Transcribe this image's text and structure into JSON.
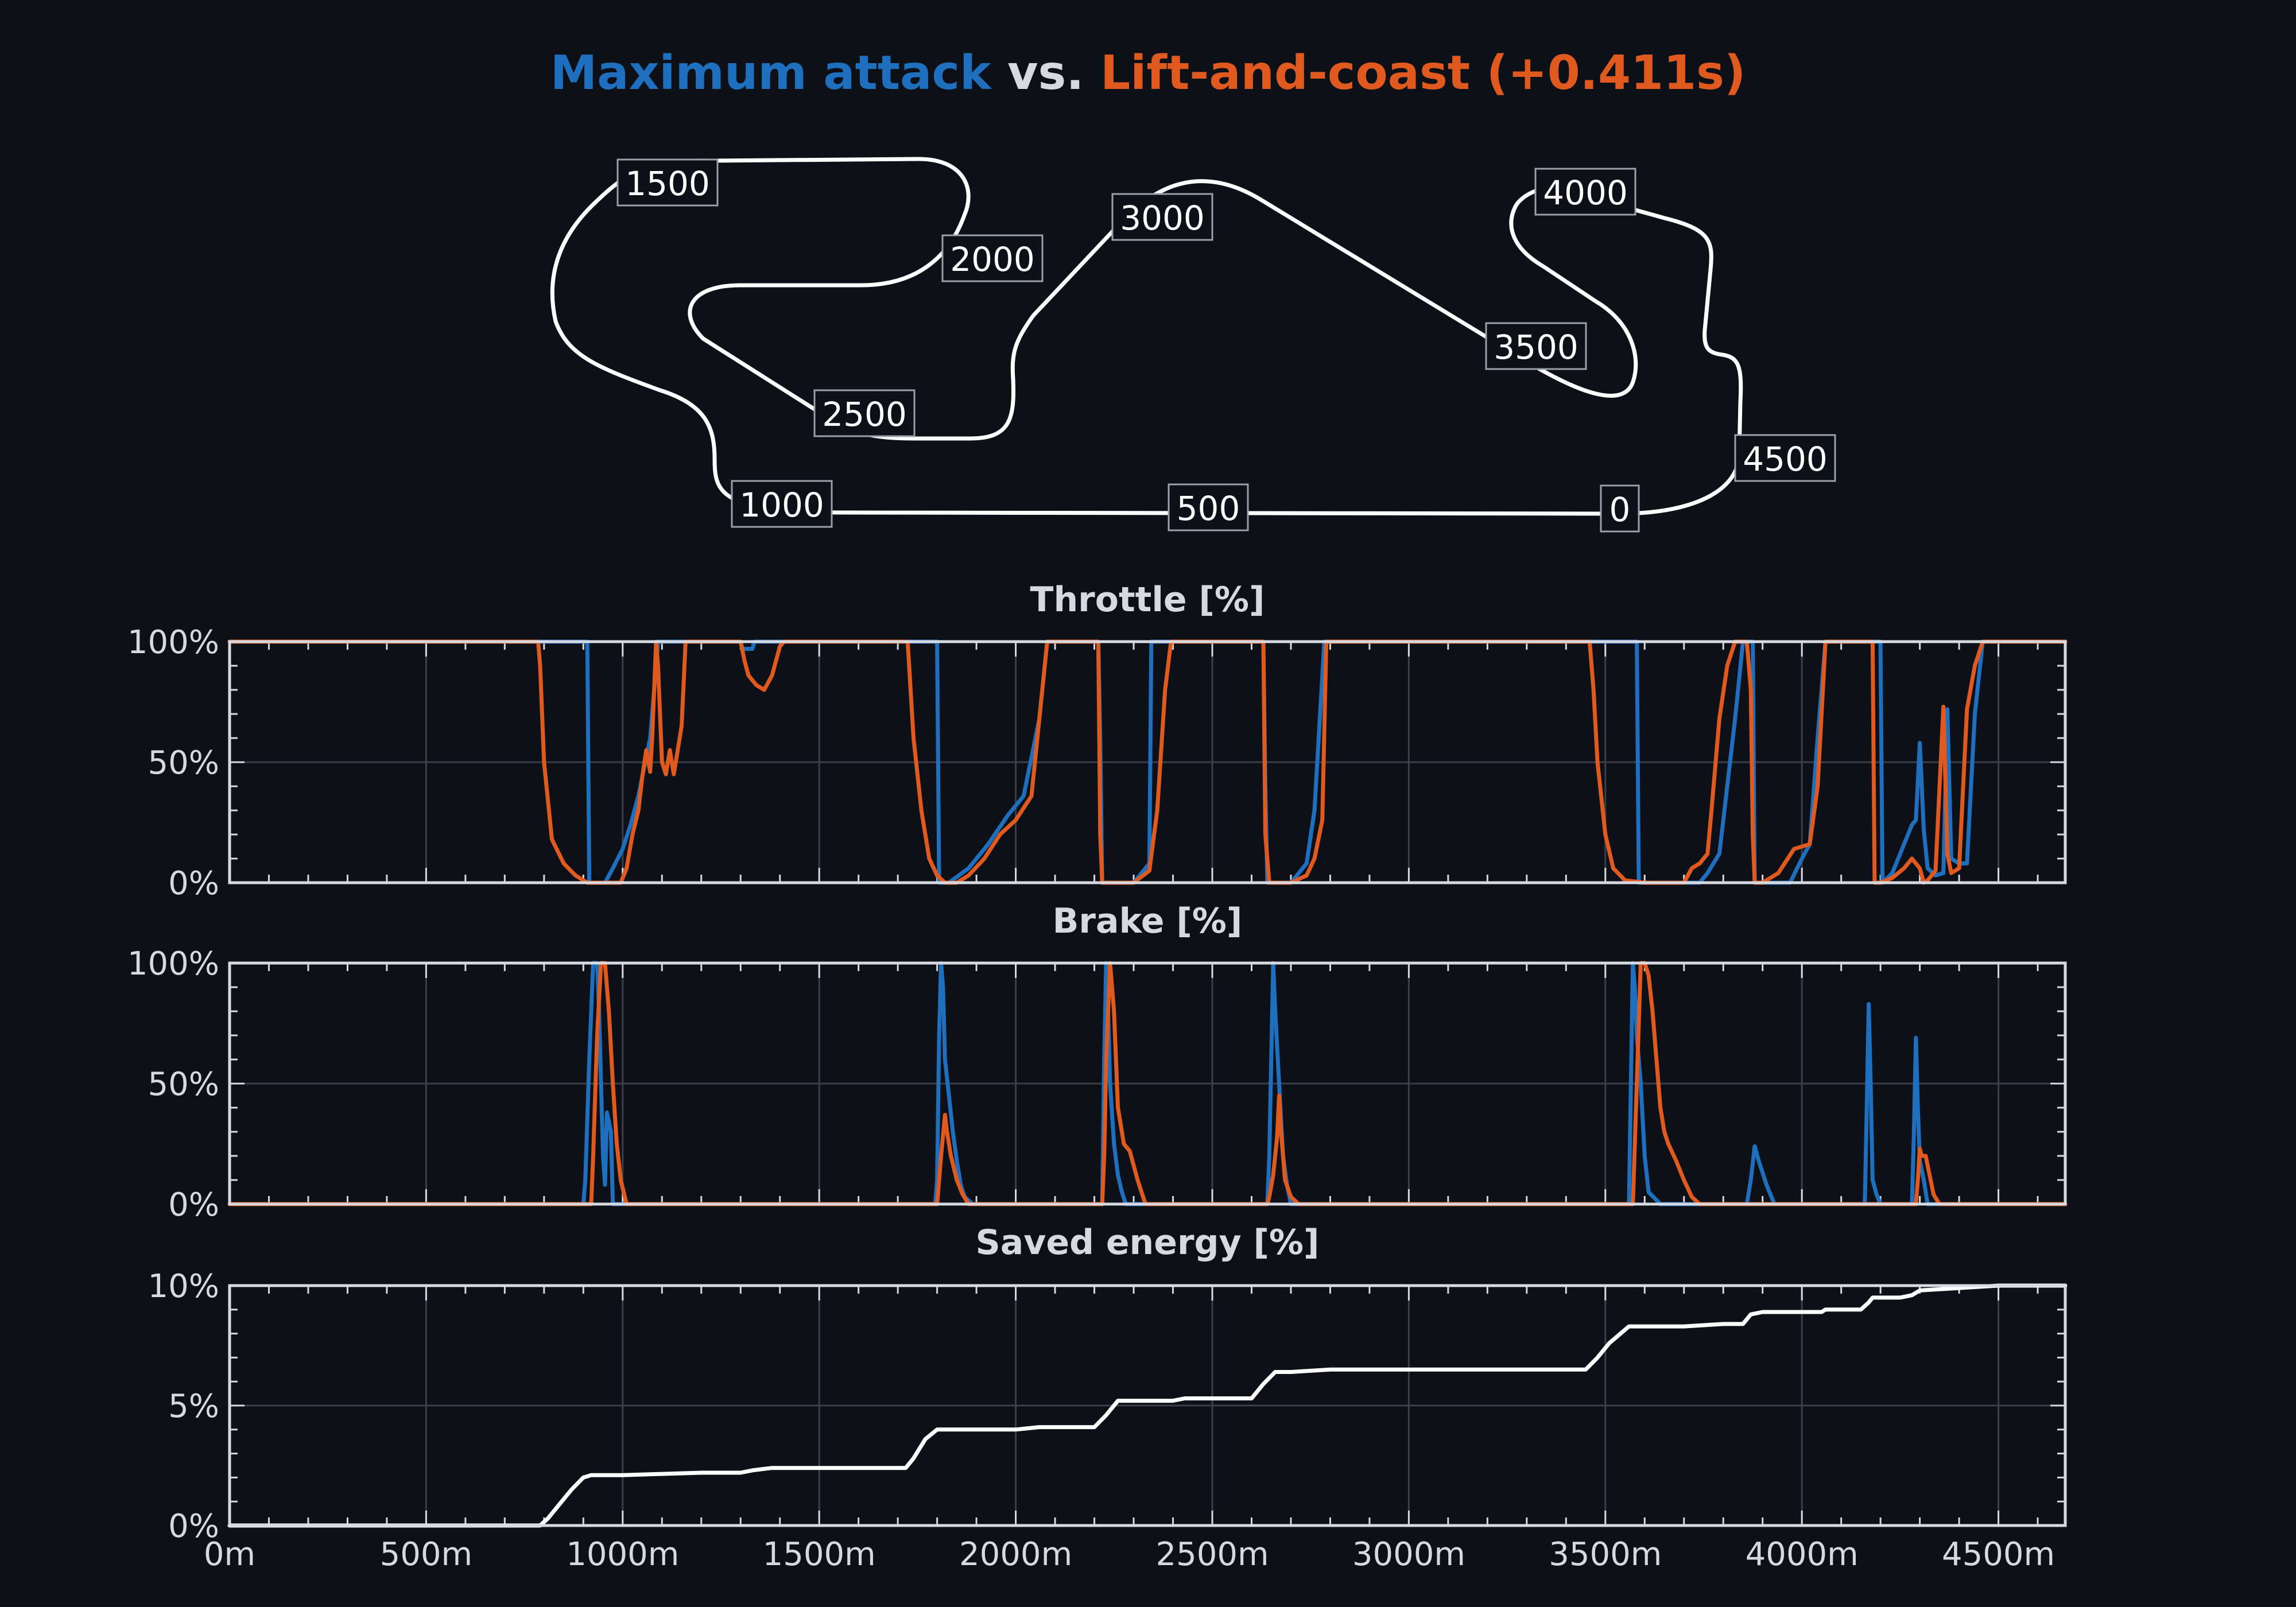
{
  "title": {
    "part1": "Maximum attack",
    "part2": " vs. ",
    "part3": "Lift-and-coast (+0.411s)",
    "color1": "#1f6fbf",
    "color2": "#d6dae0",
    "color3": "#e05a1f"
  },
  "colors": {
    "max_attack": "#1f6fbf",
    "lift_coast": "#e05a1f",
    "energy": "#ffffff",
    "frame": "#d6dae0",
    "grid": "#3a3f48",
    "background": "#0d1017"
  },
  "track_map": {
    "type": "line",
    "labels": [
      "0",
      "500",
      "1000",
      "1500",
      "2000",
      "2500",
      "3000",
      "3500",
      "4000",
      "4500"
    ]
  },
  "chart_data": [
    {
      "type": "line",
      "title": "Throttle [%]",
      "xlim": [
        0,
        4670
      ],
      "ylim": [
        0,
        100
      ],
      "ytick_labels": [
        "0%",
        "50%",
        "100%"
      ],
      "grid": true,
      "series": [
        {
          "x": [
            0,
            785,
            790,
            910,
            915,
            955,
            975,
            1000,
            1020,
            1040,
            1060,
            1070,
            1080,
            1090,
            1100,
            1110,
            1130,
            1150,
            1160,
            1175,
            1200,
            1300,
            1305,
            1330,
            1335,
            1720,
            1725,
            1800,
            1805,
            1830,
            1880,
            1930,
            1980,
            2020,
            2060,
            2080,
            2210,
            2215,
            2220,
            2300,
            2340,
            2345,
            2630,
            2635,
            2640,
            2700,
            2740,
            2760,
            2785,
            3460,
            3465,
            3580,
            3585,
            3700,
            3720,
            3740,
            3760,
            3790,
            3830,
            3850,
            3870,
            3875,
            3880,
            3970,
            4000,
            4020,
            4040,
            4060,
            4080,
            4200,
            4205,
            4230,
            4260,
            4280,
            4290,
            4300,
            4310,
            4320,
            4340,
            4360,
            4370,
            4380,
            4400,
            4420,
            4440,
            4460,
            4480,
            4670
          ],
          "y": [
            100,
            100,
            100,
            100,
            0,
            0,
            6,
            14,
            24,
            36,
            52,
            60,
            80,
            100,
            100,
            100,
            100,
            100,
            100,
            100,
            100,
            100,
            97,
            97,
            100,
            100,
            100,
            100,
            0,
            0,
            6,
            16,
            28,
            36,
            68,
            100,
            100,
            60,
            0,
            0,
            8,
            100,
            100,
            40,
            0,
            0,
            8,
            30,
            100,
            100,
            100,
            100,
            0,
            0,
            0,
            0,
            4,
            12,
            68,
            100,
            100,
            100,
            0,
            0,
            10,
            16,
            60,
            100,
            100,
            100,
            0,
            4,
            16,
            24,
            26,
            58,
            22,
            6,
            3,
            4,
            72,
            10,
            8,
            8,
            70,
            100,
            100,
            100
          ],
          "color": "#1f6fbf"
        },
        {
          "x": [
            0,
            785,
            790,
            800,
            820,
            850,
            880,
            910,
            940,
            970,
            995,
            1010,
            1025,
            1040,
            1050,
            1060,
            1070,
            1075,
            1080,
            1085,
            1090,
            1100,
            1110,
            1120,
            1130,
            1140,
            1150,
            1160,
            1175,
            1200,
            1300,
            1310,
            1320,
            1340,
            1360,
            1380,
            1400,
            1410,
            1720,
            1725,
            1740,
            1760,
            1780,
            1800,
            1820,
            1850,
            1880,
            1920,
            1960,
            2000,
            2040,
            2060,
            2080,
            2095,
            2210,
            2215,
            2220,
            2230,
            2260,
            2300,
            2340,
            2360,
            2380,
            2395,
            2400,
            2630,
            2635,
            2645,
            2660,
            2700,
            2740,
            2760,
            2780,
            2790,
            2800,
            3460,
            3470,
            3480,
            3500,
            3520,
            3550,
            3600,
            3650,
            3700,
            3720,
            3740,
            3760,
            3770,
            3790,
            3810,
            3830,
            3850,
            3860,
            3870,
            3875,
            3880,
            3900,
            3940,
            3980,
            4020,
            4040,
            4060,
            4070,
            4080,
            4180,
            4185,
            4200,
            4230,
            4260,
            4280,
            4300,
            4310,
            4320,
            4340,
            4360,
            4370,
            4380,
            4400,
            4420,
            4440,
            4460,
            4480,
            4670
          ],
          "y": [
            100,
            100,
            90,
            50,
            18,
            8,
            3,
            0,
            0,
            0,
            0,
            6,
            20,
            30,
            44,
            55,
            46,
            60,
            80,
            100,
            90,
            50,
            45,
            55,
            45,
            55,
            65,
            100,
            100,
            100,
            100,
            92,
            86,
            82,
            80,
            86,
            98,
            100,
            100,
            100,
            60,
            30,
            10,
            3,
            0,
            0,
            3,
            10,
            20,
            26,
            36,
            68,
            100,
            100,
            100,
            20,
            0,
            0,
            0,
            0,
            5,
            30,
            80,
            100,
            100,
            100,
            20,
            0,
            0,
            0,
            3,
            10,
            26,
            100,
            100,
            100,
            80,
            50,
            20,
            6,
            1,
            0,
            0,
            0,
            6,
            8,
            12,
            30,
            68,
            90,
            100,
            100,
            100,
            80,
            20,
            0,
            0,
            4,
            14,
            16,
            40,
            100,
            100,
            100,
            100,
            0,
            0,
            2,
            6,
            10,
            6,
            0,
            1,
            5,
            73,
            12,
            4,
            6,
            72,
            90,
            100,
            100,
            100
          ],
          "color": "#e05a1f"
        }
      ]
    },
    {
      "type": "line",
      "title": "Brake [%]",
      "xlim": [
        0,
        4670
      ],
      "ylim": [
        0,
        100
      ],
      "ytick_labels": [
        "0%",
        "50%",
        "100%"
      ],
      "grid": true,
      "series": [
        {
          "x": [
            0,
            900,
            905,
            915,
            925,
            935,
            940,
            945,
            950,
            955,
            960,
            970,
            975,
            1000,
            1795,
            1800,
            1805,
            1810,
            1815,
            1820,
            1830,
            1840,
            1850,
            1860,
            1870,
            1890,
            2000,
            2220,
            2225,
            2230,
            2235,
            2240,
            2250,
            2260,
            2270,
            2280,
            2300,
            2640,
            2645,
            2650,
            2655,
            2660,
            2670,
            2680,
            2690,
            2700,
            2720,
            3560,
            3565,
            3570,
            3575,
            3580,
            3590,
            3600,
            3610,
            3640,
            3860,
            3870,
            3880,
            3890,
            3910,
            3930,
            4000,
            4160,
            4165,
            4170,
            4175,
            4180,
            4190,
            4200,
            4210,
            4280,
            4285,
            4290,
            4295,
            4300,
            4310,
            4320,
            4670
          ],
          "y": [
            0,
            0,
            10,
            60,
            100,
            100,
            80,
            50,
            20,
            8,
            38,
            30,
            0,
            0,
            0,
            10,
            70,
            100,
            90,
            60,
            45,
            30,
            18,
            8,
            3,
            0,
            0,
            0,
            60,
            100,
            80,
            50,
            25,
            12,
            5,
            0,
            0,
            0,
            20,
            60,
            100,
            80,
            50,
            20,
            8,
            0,
            0,
            0,
            50,
            100,
            90,
            70,
            50,
            20,
            5,
            0,
            0,
            10,
            24,
            18,
            8,
            0,
            0,
            0,
            40,
            83,
            50,
            10,
            4,
            0,
            0,
            0,
            30,
            69,
            40,
            18,
            10,
            0,
            0
          ],
          "color": "#1f6fbf"
        },
        {
          "x": [
            0,
            920,
            925,
            935,
            945,
            955,
            965,
            975,
            985,
            995,
            1010,
            1800,
            1805,
            1810,
            1820,
            1825,
            1835,
            1850,
            1865,
            1880,
            1900,
            2220,
            2225,
            2230,
            2240,
            2250,
            2260,
            2275,
            2290,
            2310,
            2330,
            2640,
            2645,
            2655,
            2665,
            2670,
            2675,
            2685,
            2700,
            2720,
            3570,
            3580,
            3590,
            3600,
            3610,
            3620,
            3630,
            3640,
            3650,
            3660,
            3680,
            3700,
            3720,
            3740,
            4290,
            4295,
            4300,
            4305,
            4315,
            4325,
            4335,
            4350,
            4670
          ],
          "y": [
            0,
            0,
            20,
            70,
            100,
            100,
            80,
            50,
            25,
            10,
            0,
            0,
            10,
            20,
            37,
            30,
            20,
            10,
            4,
            0,
            0,
            0,
            20,
            60,
            100,
            80,
            40,
            25,
            22,
            10,
            0,
            0,
            3,
            12,
            28,
            45,
            30,
            10,
            3,
            0,
            0,
            50,
            100,
            100,
            95,
            80,
            60,
            40,
            30,
            25,
            18,
            10,
            3,
            0,
            0,
            10,
            23,
            20,
            20,
            12,
            4,
            0,
            0
          ],
          "color": "#e05a1f"
        }
      ]
    },
    {
      "type": "line",
      "title": "Saved energy [%]",
      "xlim": [
        0,
        4670
      ],
      "ylim": [
        0,
        10
      ],
      "ytick_labels": [
        "0%",
        "5%",
        "10%"
      ],
      "grid": true,
      "series": [
        {
          "x": [
            0,
            790,
            810,
            840,
            870,
            900,
            920,
            1000,
            1100,
            1200,
            1300,
            1330,
            1380,
            1720,
            1740,
            1770,
            1800,
            1830,
            2000,
            2060,
            2200,
            2230,
            2260,
            2300,
            2400,
            2430,
            2600,
            2630,
            2660,
            2700,
            2800,
            3000,
            3200,
            3450,
            3480,
            3510,
            3560,
            3600,
            3700,
            3800,
            3850,
            3870,
            3900,
            4000,
            4050,
            4060,
            4150,
            4170,
            4180,
            4250,
            4280,
            4300,
            4400,
            4500,
            4670
          ],
          "y": [
            0,
            0,
            0.3,
            0.9,
            1.5,
            2.0,
            2.1,
            2.1,
            2.15,
            2.2,
            2.2,
            2.3,
            2.4,
            2.4,
            2.8,
            3.6,
            4.0,
            4.0,
            4.0,
            4.1,
            4.1,
            4.6,
            5.2,
            5.2,
            5.2,
            5.3,
            5.3,
            5.9,
            6.4,
            6.4,
            6.5,
            6.5,
            6.5,
            6.5,
            7.0,
            7.6,
            8.3,
            8.3,
            8.3,
            8.4,
            8.4,
            8.8,
            8.9,
            8.9,
            8.9,
            9.0,
            9.0,
            9.3,
            9.5,
            9.5,
            9.6,
            9.8,
            9.9,
            10.0,
            10.0
          ],
          "color": "#ffffff"
        }
      ]
    }
  ],
  "x_axis": {
    "tick_labels": [
      "0m",
      "500m",
      "1000m",
      "1500m",
      "2000m",
      "2500m",
      "3000m",
      "3500m",
      "4000m",
      "4500m"
    ]
  }
}
